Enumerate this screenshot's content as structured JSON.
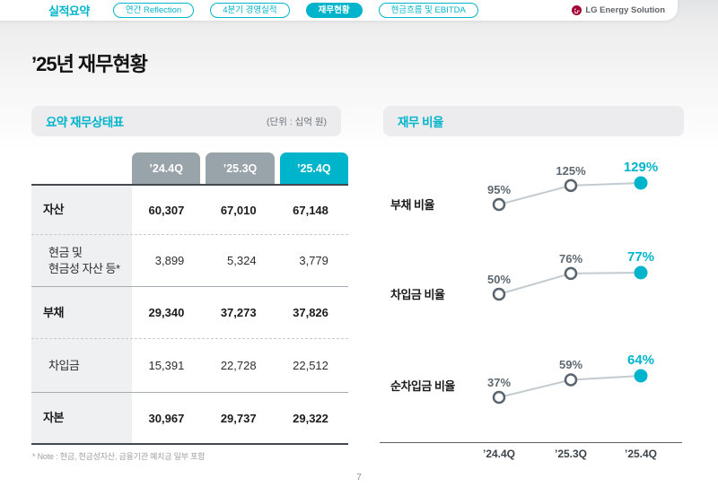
{
  "nav": {
    "section_label": "실적요약",
    "tabs": [
      {
        "label": "연간 Reflection",
        "active": false
      },
      {
        "label": "4분기 경영실적",
        "active": false
      },
      {
        "label": "재무현황",
        "active": true
      },
      {
        "label": "현금흐름 및 EBITDA",
        "active": false
      }
    ],
    "logo_text": "LG Energy Solution"
  },
  "page": {
    "title": "’25년 재무현황",
    "page_number": "7"
  },
  "balance_sheet": {
    "section_title": "요약 재무상태표",
    "unit_label": "(단위 : 십억 원)",
    "columns": [
      "’24.4Q",
      "’25.3Q",
      "’25.4Q"
    ],
    "rows": [
      {
        "label": "자산",
        "values": [
          "60,307",
          "67,010",
          "67,148"
        ],
        "emphasis": true
      },
      {
        "label": "현금 및\n현금성 자산 등*",
        "values": [
          "3,899",
          "5,324",
          "3,779"
        ],
        "emphasis": false
      },
      {
        "label": "부채",
        "values": [
          "29,340",
          "37,273",
          "37,826"
        ],
        "emphasis": true
      },
      {
        "label": "차입금",
        "values": [
          "15,391",
          "22,728",
          "22,512"
        ],
        "emphasis": false
      },
      {
        "label": "자본",
        "values": [
          "30,967",
          "29,737",
          "29,322"
        ],
        "emphasis": true
      }
    ],
    "note": "* Note : 현금, 현금성자산, 금융기관 예치금 일부 포함"
  },
  "financial_ratios": {
    "section_title": "재무 비율"
  },
  "chart_data": {
    "type": "line",
    "title": "재무 비율",
    "categories": [
      "’24.4Q",
      "’25.3Q",
      "’25.4Q"
    ],
    "series": [
      {
        "name": "부채 비율",
        "values": [
          95,
          125,
          129
        ]
      },
      {
        "name": "차입금 비율",
        "values": [
          50,
          76,
          77
        ]
      },
      {
        "name": "순차입금 비율",
        "values": [
          37,
          59,
          64
        ]
      }
    ],
    "unit": "%",
    "highlight_last_point": true,
    "legend": "none",
    "grid": false,
    "colors": {
      "accent": "#00B5CB",
      "line": "#C3CBD0",
      "marker_stroke": "#5A656D"
    }
  }
}
